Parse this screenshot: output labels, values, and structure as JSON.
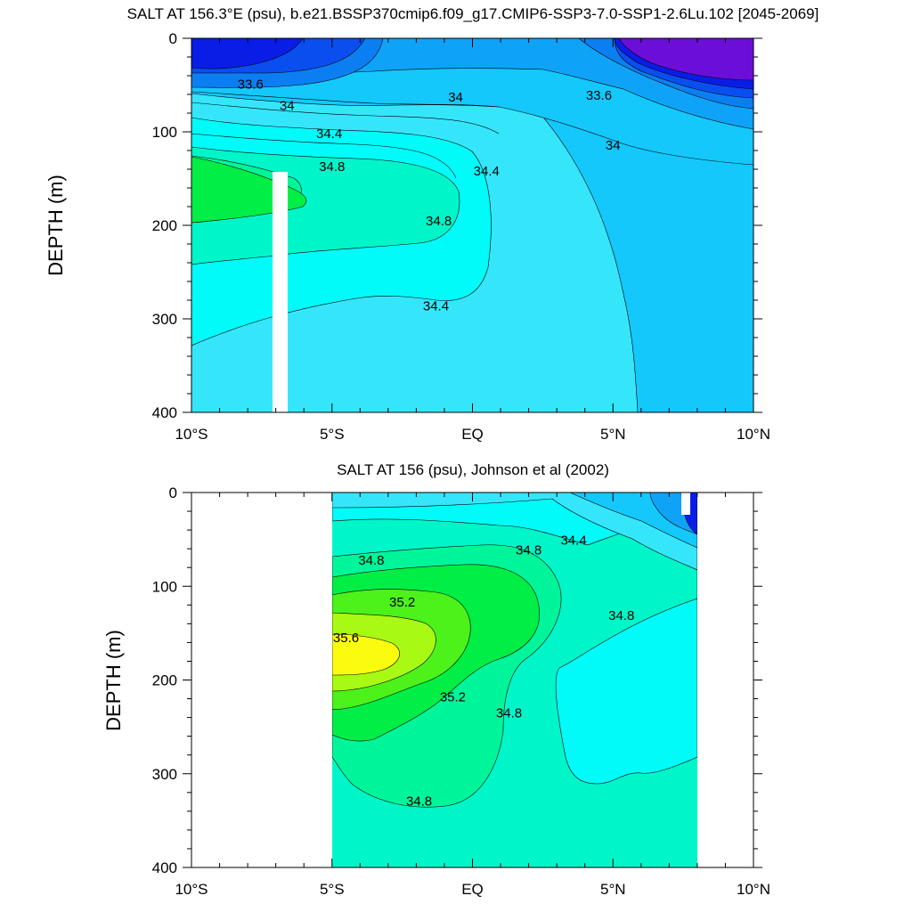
{
  "chart_data": [
    {
      "type": "heatmap",
      "title": "SALT AT 156.3°E (psu), b.e21.BSSP370cmip6.f09_g17.CMIP6-SSP3-7.0-SSP1-2.6Lu.102 [2045-2069]",
      "xlabel": "",
      "ylabel": "DEPTH (m)",
      "xlim": [
        -10,
        10
      ],
      "ylim": [
        400,
        0
      ],
      "x_ticks": [
        {
          "value": -10,
          "label": "10°S"
        },
        {
          "value": -5,
          "label": "5°S"
        },
        {
          "value": 0,
          "label": "EQ"
        },
        {
          "value": 5,
          "label": "5°N"
        },
        {
          "value": 10,
          "label": "10°N"
        }
      ],
      "y_ticks": [
        0,
        100,
        200,
        300,
        400
      ],
      "contour_labels": [
        {
          "text": "33.6",
          "lat": -7.9,
          "depth": 50
        },
        {
          "text": "33.6",
          "lat": 4.5,
          "depth": 62
        },
        {
          "text": "34",
          "lat": -6.6,
          "depth": 73
        },
        {
          "text": "34",
          "lat": -0.6,
          "depth": 64
        },
        {
          "text": "34",
          "lat": 5.0,
          "depth": 115
        },
        {
          "text": "34.4",
          "lat": -5.1,
          "depth": 103
        },
        {
          "text": "34.4",
          "lat": 0.5,
          "depth": 143
        },
        {
          "text": "34.4",
          "lat": -1.3,
          "depth": 287
        },
        {
          "text": "34.8",
          "lat": -5.0,
          "depth": 138
        },
        {
          "text": "34.8",
          "lat": -1.2,
          "depth": 196
        }
      ]
    },
    {
      "type": "heatmap",
      "title": "SALT AT 156 (psu), Johnson et al (2002)",
      "xlabel": "",
      "ylabel": "DEPTH (m)",
      "xlim": [
        -10,
        10
      ],
      "ylim": [
        400,
        0
      ],
      "x_ticks": [
        {
          "value": -10,
          "label": "10°S"
        },
        {
          "value": -5,
          "label": "5°S"
        },
        {
          "value": 0,
          "label": "EQ"
        },
        {
          "value": 5,
          "label": "5°N"
        },
        {
          "value": 10,
          "label": "10°N"
        }
      ],
      "y_ticks": [
        0,
        100,
        200,
        300,
        400
      ],
      "data_lat_range": [
        -5,
        8
      ],
      "contour_labels": [
        {
          "text": "34.8",
          "lat": -3.6,
          "depth": 73
        },
        {
          "text": "34.8",
          "lat": 2.0,
          "depth": 62
        },
        {
          "text": "34.4",
          "lat": 3.6,
          "depth": 52
        },
        {
          "text": "34.8",
          "lat": 5.3,
          "depth": 132
        },
        {
          "text": "35.2",
          "lat": -2.5,
          "depth": 118
        },
        {
          "text": "35.6",
          "lat": -4.5,
          "depth": 156
        },
        {
          "text": "35.2",
          "lat": -0.7,
          "depth": 219
        },
        {
          "text": "34.8",
          "lat": 1.3,
          "depth": 236
        },
        {
          "text": "34.8",
          "lat": -1.9,
          "depth": 330
        }
      ]
    }
  ],
  "colors": {
    "very_fresh": "#6b0fd8",
    "fresh_deep": "#0a1de6",
    "fresh": "#0a4ef0",
    "fresh_mid": "#0b7ff2",
    "mid_low": "#0fa3f8",
    "mid": "#14c8fb",
    "mid_high": "#35e6fb",
    "cyan": "#00fbf9",
    "aquamarine": "#00f6c8",
    "spring": "#00f59a",
    "green": "#00ee45",
    "lime": "#4cf21a",
    "yellowgreen": "#a8fa14",
    "yellow": "#fbfb0f"
  }
}
